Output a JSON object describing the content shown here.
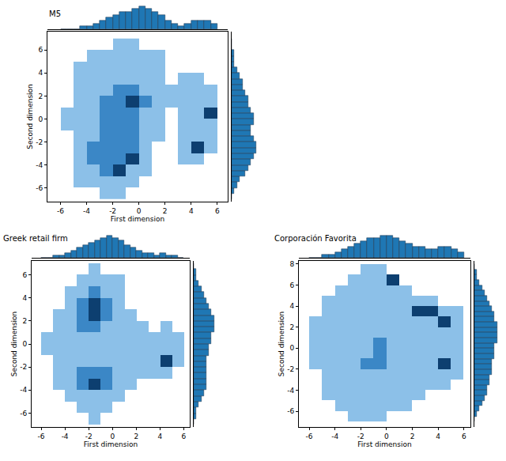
{
  "chart_data": [
    {
      "type": "hexbin",
      "title": "M5",
      "xlabel": "First dimension",
      "ylabel": "Second dimension",
      "color": "#1f77b4",
      "xlim": [
        -7,
        6.8
      ],
      "xticks": [
        -6,
        -4,
        -2,
        0,
        2,
        4,
        6
      ],
      "ylim": [
        -7.2,
        7.6
      ],
      "yticks": [
        -6,
        -4,
        -2,
        0,
        2,
        4,
        6
      ],
      "cell_x": [
        -6.5,
        -5.5,
        -4.5,
        -3.5,
        -2.5,
        -1.5,
        -0.5,
        0.5,
        1.5,
        2.5,
        3.5,
        4.5,
        5.5,
        6.5
      ],
      "cell_y": [
        -6.5,
        -5.5,
        -4.5,
        -3.5,
        -2.5,
        -1.5,
        -0.5,
        0.5,
        1.5,
        2.5,
        3.5,
        4.5,
        5.5,
        6.5
      ],
      "cells": [
        [
          0,
          0,
          0,
          0,
          1,
          1,
          0,
          0,
          0,
          0,
          0,
          0,
          0,
          0
        ],
        [
          0,
          0,
          1,
          1,
          1,
          1,
          1,
          0,
          0,
          0,
          0,
          0,
          0,
          0
        ],
        [
          0,
          0,
          1,
          1,
          2,
          3,
          1,
          1,
          0,
          0,
          0,
          0,
          0,
          0
        ],
        [
          0,
          0,
          1,
          2,
          2,
          2,
          3,
          1,
          0,
          0,
          1,
          1,
          0,
          0
        ],
        [
          0,
          0,
          1,
          2,
          2,
          2,
          2,
          1,
          0,
          0,
          1,
          3,
          1,
          0
        ],
        [
          0,
          0,
          1,
          1,
          2,
          2,
          2,
          1,
          1,
          0,
          1,
          1,
          1,
          0
        ],
        [
          0,
          1,
          1,
          1,
          2,
          2,
          2,
          1,
          1,
          0,
          1,
          1,
          1,
          0
        ],
        [
          0,
          1,
          1,
          1,
          2,
          2,
          2,
          1,
          1,
          0,
          1,
          1,
          3,
          0
        ],
        [
          0,
          0,
          1,
          1,
          2,
          2,
          3,
          2,
          1,
          1,
          1,
          1,
          1,
          0
        ],
        [
          0,
          0,
          1,
          1,
          1,
          2,
          2,
          1,
          1,
          1,
          1,
          1,
          1,
          0
        ],
        [
          0,
          0,
          1,
          1,
          1,
          1,
          1,
          1,
          1,
          0,
          1,
          1,
          0,
          0
        ],
        [
          0,
          0,
          1,
          1,
          1,
          1,
          1,
          1,
          1,
          0,
          0,
          0,
          0,
          0
        ],
        [
          0,
          0,
          0,
          1,
          1,
          1,
          1,
          1,
          1,
          0,
          0,
          0,
          0,
          0
        ],
        [
          0,
          0,
          0,
          0,
          0,
          1,
          1,
          0,
          0,
          0,
          0,
          0,
          0,
          0
        ]
      ],
      "x_hist": {
        "bins": [
          -6,
          -5.5,
          -5,
          -4.5,
          -4,
          -3.5,
          -3,
          -2.5,
          -2,
          -1.5,
          -1,
          -0.5,
          0,
          0.5,
          1,
          1.5,
          2,
          2.5,
          3,
          3.5,
          4,
          4.5,
          5,
          5.5,
          6
        ],
        "counts": [
          0,
          0,
          0,
          1,
          1,
          2,
          3,
          4,
          5,
          6,
          6,
          7,
          8,
          7,
          6,
          5,
          3,
          2,
          1,
          2,
          3,
          3,
          3,
          2
        ]
      },
      "y_hist": {
        "bins": [
          -7,
          -6.5,
          -6,
          -5.5,
          -5,
          -4.5,
          -4,
          -3.5,
          -3,
          -2.5,
          -2,
          -1.5,
          -1,
          -0.5,
          0,
          0.5,
          1,
          1.5,
          2,
          2.5,
          3,
          3.5,
          4,
          4.5,
          5,
          5.5,
          6,
          6.5,
          7
        ],
        "counts": [
          0,
          1,
          2,
          3,
          5,
          6,
          7,
          8,
          9,
          9,
          8,
          7,
          7,
          8,
          8,
          7,
          6,
          6,
          5,
          4,
          4,
          3,
          2,
          1,
          1,
          1,
          0,
          0
        ]
      }
    },
    {
      "type": "hexbin",
      "title": "Greek retail firm",
      "xlabel": "First dimension",
      "ylabel": "Second dimension",
      "color": "#1f77b4",
      "xlim": [
        -6.8,
        6.5
      ],
      "xticks": [
        -6,
        -4,
        -2,
        0,
        2,
        4,
        6
      ],
      "ylim": [
        -7.2,
        7.2
      ],
      "yticks": [
        -6,
        -4,
        -2,
        0,
        2,
        4,
        6
      ],
      "cell_x": [
        -6.5,
        -5.5,
        -4.5,
        -3.5,
        -2.5,
        -1.5,
        -0.5,
        0.5,
        1.5,
        2.5,
        3.5,
        4.5,
        5.5,
        6.5
      ],
      "cell_y": [
        -6.5,
        -5.5,
        -4.5,
        -3.5,
        -2.5,
        -1.5,
        -0.5,
        0.5,
        1.5,
        2.5,
        3.5,
        4.5,
        5.5,
        6.5
      ],
      "cells": [
        [
          0,
          0,
          0,
          0,
          0,
          1,
          0,
          0,
          0,
          0,
          0,
          0,
          0,
          0
        ],
        [
          0,
          0,
          0,
          0,
          1,
          1,
          1,
          0,
          0,
          0,
          0,
          0,
          0,
          0
        ],
        [
          0,
          0,
          0,
          1,
          1,
          1,
          1,
          1,
          0,
          0,
          0,
          0,
          0,
          0
        ],
        [
          0,
          0,
          1,
          1,
          2,
          3,
          2,
          1,
          1,
          0,
          0,
          0,
          0,
          0
        ],
        [
          0,
          0,
          1,
          1,
          2,
          2,
          2,
          1,
          1,
          1,
          1,
          1,
          0,
          0
        ],
        [
          0,
          0,
          1,
          1,
          1,
          1,
          1,
          1,
          1,
          1,
          1,
          3,
          1,
          0
        ],
        [
          0,
          1,
          1,
          1,
          1,
          1,
          1,
          1,
          1,
          1,
          1,
          1,
          1,
          0
        ],
        [
          0,
          1,
          1,
          1,
          1,
          1,
          1,
          1,
          1,
          1,
          1,
          1,
          1,
          0
        ],
        [
          0,
          0,
          1,
          1,
          2,
          2,
          1,
          1,
          1,
          1,
          0,
          1,
          0,
          0
        ],
        [
          0,
          0,
          1,
          1,
          2,
          3,
          2,
          1,
          1,
          0,
          0,
          0,
          0,
          0
        ],
        [
          0,
          0,
          0,
          1,
          2,
          3,
          2,
          1,
          0,
          0,
          0,
          0,
          0,
          0
        ],
        [
          0,
          0,
          0,
          1,
          1,
          2,
          1,
          1,
          0,
          0,
          0,
          0,
          0,
          0
        ],
        [
          0,
          0,
          0,
          0,
          1,
          1,
          1,
          1,
          0,
          0,
          0,
          0,
          0,
          0
        ],
        [
          0,
          0,
          0,
          0,
          0,
          1,
          0,
          0,
          0,
          0,
          0,
          0,
          0,
          0
        ]
      ],
      "x_hist": {
        "bins": [
          -6,
          -5.5,
          -5,
          -4.5,
          -4,
          -3.5,
          -3,
          -2.5,
          -2,
          -1.5,
          -1,
          -0.5,
          0,
          0.5,
          1,
          1.5,
          2,
          2.5,
          3,
          3.5,
          4,
          4.5,
          5,
          5.5,
          6
        ],
        "counts": [
          0,
          0,
          1,
          1,
          2,
          3,
          4,
          5,
          6,
          7,
          8,
          9,
          8,
          7,
          5,
          4,
          3,
          2,
          2,
          1,
          2,
          1,
          1,
          0
        ]
      },
      "y_hist": {
        "bins": [
          -7,
          -6.5,
          -6,
          -5.5,
          -5,
          -4.5,
          -4,
          -3.5,
          -3,
          -2.5,
          -2,
          -1.5,
          -1,
          -0.5,
          0,
          0.5,
          1,
          1.5,
          2,
          2.5,
          3,
          3.5,
          4,
          4.5,
          5,
          5.5,
          6,
          6.5,
          7
        ],
        "counts": [
          0,
          1,
          1,
          2,
          3,
          4,
          5,
          5,
          5,
          5,
          5,
          5,
          6,
          6,
          7,
          7,
          8,
          8,
          8,
          7,
          6,
          5,
          4,
          3,
          2,
          1,
          1,
          0
        ]
      }
    },
    {
      "type": "hexbin",
      "title": "Corporación Favorita",
      "xlabel": "First dimension",
      "ylabel": "Second dimension",
      "color": "#1f77b4",
      "xlim": [
        -6.8,
        6.5
      ],
      "xticks": [
        -6,
        -4,
        -2,
        0,
        2,
        4,
        6
      ],
      "ylim": [
        -7.5,
        8.3
      ],
      "yticks": [
        -6,
        -4,
        -2,
        0,
        2,
        4,
        6,
        8
      ],
      "cell_x": [
        -6.5,
        -5.5,
        -4.5,
        -3.5,
        -2.5,
        -1.5,
        -0.5,
        0.5,
        1.5,
        2.5,
        3.5,
        4.5,
        5.5,
        6.5
      ],
      "cell_y": [
        -6.5,
        -5.5,
        -4.5,
        -3.5,
        -2.5,
        -1.5,
        -0.5,
        0.5,
        1.5,
        2.5,
        3.5,
        4.5,
        5.5,
        6.5,
        7.5
      ],
      "cells": [
        [
          0,
          0,
          0,
          0,
          1,
          1,
          1,
          0,
          0,
          0,
          0,
          0,
          0,
          0
        ],
        [
          0,
          0,
          0,
          1,
          1,
          1,
          1,
          1,
          1,
          0,
          0,
          0,
          0,
          0
        ],
        [
          0,
          0,
          1,
          1,
          1,
          1,
          1,
          1,
          1,
          1,
          0,
          0,
          0,
          0
        ],
        [
          0,
          0,
          1,
          1,
          1,
          1,
          1,
          1,
          1,
          1,
          1,
          1,
          0,
          0
        ],
        [
          0,
          0,
          1,
          1,
          1,
          1,
          1,
          1,
          1,
          1,
          1,
          1,
          1,
          0
        ],
        [
          0,
          1,
          1,
          1,
          1,
          2,
          2,
          1,
          1,
          1,
          1,
          3,
          1,
          0
        ],
        [
          0,
          1,
          1,
          1,
          1,
          1,
          2,
          1,
          1,
          1,
          1,
          1,
          1,
          0
        ],
        [
          0,
          1,
          1,
          1,
          1,
          1,
          2,
          1,
          1,
          1,
          1,
          1,
          1,
          0
        ],
        [
          0,
          1,
          1,
          1,
          1,
          1,
          1,
          1,
          1,
          1,
          1,
          1,
          1,
          0
        ],
        [
          0,
          1,
          1,
          1,
          1,
          1,
          1,
          1,
          1,
          1,
          1,
          3,
          1,
          0
        ],
        [
          0,
          0,
          1,
          1,
          1,
          1,
          1,
          1,
          1,
          3,
          3,
          1,
          1,
          0
        ],
        [
          0,
          0,
          1,
          1,
          1,
          1,
          1,
          1,
          1,
          1,
          1,
          0,
          0,
          0
        ],
        [
          0,
          0,
          0,
          1,
          1,
          1,
          1,
          1,
          1,
          0,
          0,
          0,
          0,
          0
        ],
        [
          0,
          0,
          0,
          0,
          1,
          1,
          1,
          3,
          0,
          0,
          0,
          0,
          0,
          0
        ],
        [
          0,
          0,
          0,
          0,
          0,
          1,
          1,
          0,
          0,
          0,
          0,
          0,
          0,
          0
        ]
      ],
      "x_hist": {
        "bins": [
          -6,
          -5.5,
          -5,
          -4.5,
          -4,
          -3.5,
          -3,
          -2.5,
          -2,
          -1.5,
          -1,
          -0.5,
          0,
          0.5,
          1,
          1.5,
          2,
          2.5,
          3,
          3.5,
          4,
          4.5,
          5,
          5.5,
          6
        ],
        "counts": [
          0,
          0,
          1,
          1,
          2,
          3,
          4,
          5,
          6,
          7,
          7,
          8,
          8,
          7,
          6,
          5,
          4,
          4,
          3,
          3,
          4,
          4,
          3,
          2
        ]
      },
      "y_hist": {
        "bins": [
          -7,
          -6.5,
          -6,
          -5.5,
          -5,
          -4.5,
          -4,
          -3.5,
          -3,
          -2.5,
          -2,
          -1.5,
          -1,
          -0.5,
          0,
          0.5,
          1,
          1.5,
          2,
          2.5,
          3,
          3.5,
          4,
          4.5,
          5,
          5.5,
          6,
          6.5,
          7,
          7.5,
          8
        ],
        "counts": [
          0,
          1,
          2,
          3,
          4,
          5,
          5,
          6,
          6,
          7,
          7,
          7,
          8,
          8,
          8,
          9,
          9,
          9,
          9,
          8,
          8,
          7,
          6,
          5,
          4,
          3,
          2,
          1,
          1,
          0
        ]
      }
    }
  ]
}
